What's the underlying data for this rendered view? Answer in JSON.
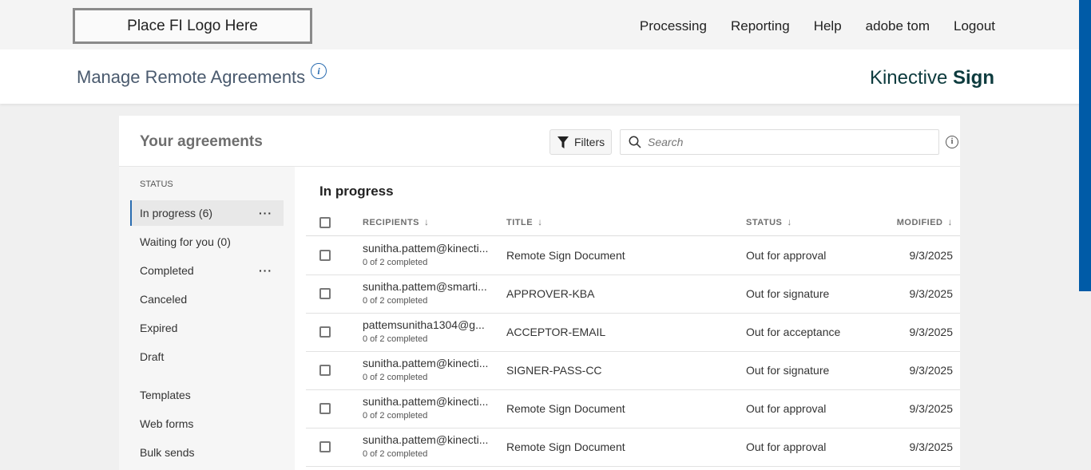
{
  "topbar": {
    "logo": "Place FI Logo Here",
    "nav": [
      "Processing",
      "Reporting",
      "Help",
      "adobe tom",
      "Logout"
    ]
  },
  "header": {
    "title": "Manage Remote Agreements",
    "brand_light": "Kinective",
    "brand_bold": "Sign"
  },
  "card": {
    "title": "Your agreements",
    "filters_label": "Filters",
    "search_placeholder": "Search"
  },
  "sidebar": {
    "status_label": "STATUS",
    "items": [
      {
        "label": "In progress (6)",
        "active": true,
        "menu": true
      },
      {
        "label": "Waiting for you (0)"
      },
      {
        "label": "Completed",
        "menu": true
      },
      {
        "label": "Canceled"
      },
      {
        "label": "Expired"
      },
      {
        "label": "Draft"
      },
      {
        "label": "Templates"
      },
      {
        "label": "Web forms"
      },
      {
        "label": "Bulk sends"
      }
    ]
  },
  "table": {
    "section_title": "In progress",
    "columns": [
      "RECIPIENTS",
      "TITLE",
      "STATUS",
      "MODIFIED"
    ],
    "rows": [
      {
        "recipient": "sunitha.pattem@kinecti...",
        "progress": "0 of 2 completed",
        "title": "Remote Sign Document",
        "status": "Out for approval",
        "modified": "9/3/2025"
      },
      {
        "recipient": "sunitha.pattem@smarti...",
        "progress": "0 of 2 completed",
        "title": "APPROVER-KBA",
        "status": "Out for signature",
        "modified": "9/3/2025"
      },
      {
        "recipient": "pattemsunitha1304@g...",
        "progress": "0 of 2 completed",
        "title": "ACCEPTOR-EMAIL",
        "status": "Out for acceptance",
        "modified": "9/3/2025"
      },
      {
        "recipient": "sunitha.pattem@kinecti...",
        "progress": "0 of 2 completed",
        "title": "SIGNER-PASS-CC",
        "status": "Out for signature",
        "modified": "9/3/2025"
      },
      {
        "recipient": "sunitha.pattem@kinecti...",
        "progress": "0 of 2 completed",
        "title": "Remote Sign Document",
        "status": "Out for approval",
        "modified": "9/3/2025"
      },
      {
        "recipient": "sunitha.pattem@kinecti...",
        "progress": "0 of 2 completed",
        "title": "Remote Sign Document",
        "status": "Out for approval",
        "modified": "9/3/2025"
      }
    ]
  },
  "colors": {
    "accent": "#005ba7",
    "brand": "#0d3b3e"
  }
}
